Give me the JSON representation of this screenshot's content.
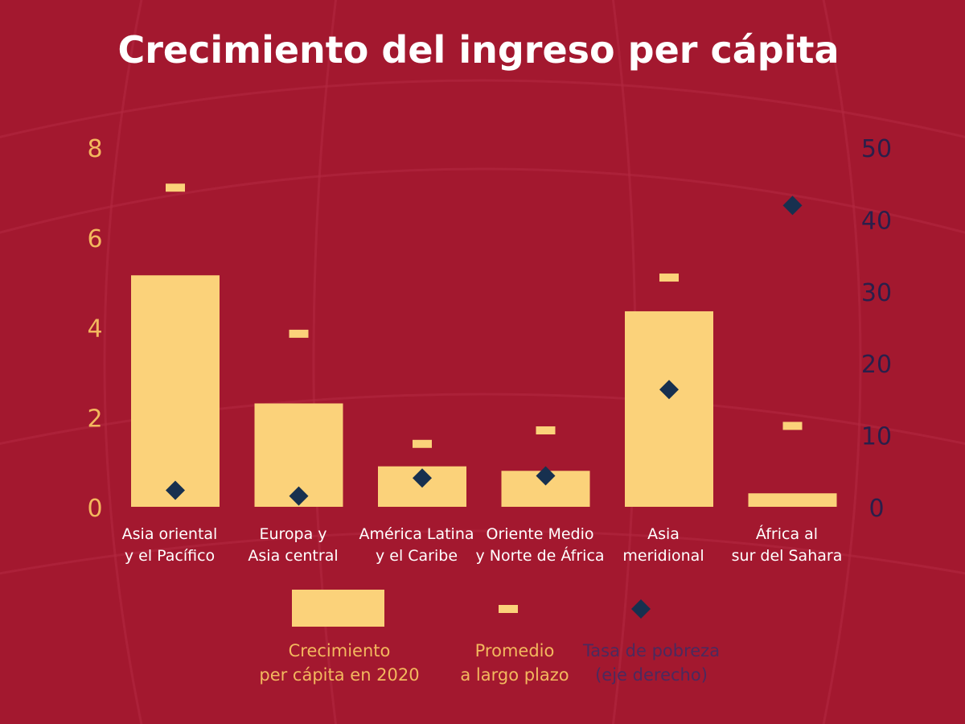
{
  "colors": {
    "background": "#a3182f",
    "bar": "#fbd27a",
    "average_marker": "#fbd27a",
    "poverty_marker": "#17304f",
    "left_axis_text": "#f3b85e",
    "right_axis_text": "#2a1f4a",
    "legend_dark_text": "#4a2a5e",
    "title_text": "#ffffff",
    "category_text": "#ffffff"
  },
  "chart_data": {
    "type": "bar",
    "title": "Crecimiento del ingreso per cápita",
    "categories": [
      [
        "Asia oriental",
        "y el Pacífico"
      ],
      [
        "Europa y",
        "Asia central"
      ],
      [
        "América Latina",
        "y el Caribe"
      ],
      [
        "Oriente Medio",
        "y Norte de África"
      ],
      [
        "Asia",
        "meridional"
      ],
      [
        "África al",
        "sur del Sahara"
      ]
    ],
    "series": [
      {
        "name": "Crecimiento per cápita en 2020",
        "kind": "bar",
        "axis": "left",
        "values": [
          5.15,
          2.3,
          0.9,
          0.8,
          4.35,
          0.3
        ]
      },
      {
        "name": "Promedio a largo plazo",
        "kind": "dash",
        "axis": "left",
        "values": [
          7.1,
          3.85,
          1.4,
          1.7,
          5.1,
          1.8
        ]
      },
      {
        "name": "Tasa de pobreza (eje derecho)",
        "kind": "diamond",
        "axis": "right",
        "values": [
          2.3,
          1.5,
          4.0,
          4.3,
          16.3,
          41.9
        ]
      }
    ],
    "y_left": {
      "ylim": [
        0,
        8
      ],
      "ticks": [
        "0",
        "2",
        "4",
        "6",
        "8"
      ]
    },
    "y_right": {
      "ylim": [
        0,
        50
      ],
      "ticks": [
        "0",
        "10",
        "20",
        "30",
        "40",
        "50"
      ]
    },
    "legend": {
      "position": "bottom",
      "items": [
        {
          "lines": [
            "Crecimiento",
            "per cápita en 2020"
          ]
        },
        {
          "lines": [
            "Promedio",
            "a largo plazo"
          ]
        },
        {
          "lines": [
            "Tasa de pobreza",
            "(eje derecho)"
          ]
        }
      ]
    },
    "grid": false
  }
}
